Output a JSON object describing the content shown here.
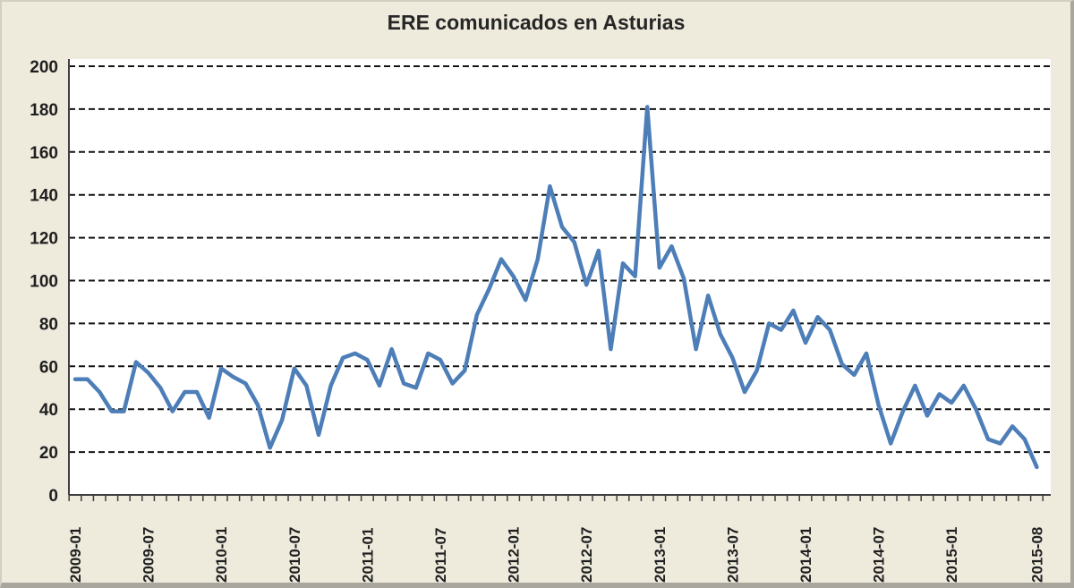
{
  "window": {
    "background_color": "#EEEADC",
    "border_color": "#A9A79D"
  },
  "title": "ERE comunicados en Asturias",
  "chart_data": {
    "type": "line",
    "title": "ERE comunicados en Asturias",
    "xlabel": "",
    "ylabel": "",
    "ylim": [
      0,
      200
    ],
    "y_ticks": [
      0,
      20,
      40,
      60,
      80,
      100,
      120,
      140,
      160,
      180,
      200
    ],
    "x_tick_labels": [
      "2009-01",
      "2009-07",
      "2010-01",
      "2010-07",
      "2011-01",
      "2011-07",
      "2012-01",
      "2012-07",
      "2013-01",
      "2013-07",
      "2014-01",
      "2014-07",
      "2015-01",
      "2015-08"
    ],
    "grid": "horizontal-dashed",
    "grid_color": "#141414",
    "legend": "none",
    "line_color": "#4D7EB8",
    "plot_background": "#FFFFFF",
    "axis_color": "#3f3f3f",
    "months": [
      "2009-01",
      "2009-02",
      "2009-03",
      "2009-04",
      "2009-05",
      "2009-06",
      "2009-07",
      "2009-08",
      "2009-09",
      "2009-10",
      "2009-11",
      "2009-12",
      "2010-01",
      "2010-02",
      "2010-03",
      "2010-04",
      "2010-05",
      "2010-06",
      "2010-07",
      "2010-08",
      "2010-09",
      "2010-10",
      "2010-11",
      "2010-12",
      "2011-01",
      "2011-02",
      "2011-03",
      "2011-04",
      "2011-05",
      "2011-06",
      "2011-07",
      "2011-08",
      "2011-09",
      "2011-10",
      "2011-11",
      "2011-12",
      "2012-01",
      "2012-02",
      "2012-03",
      "2012-04",
      "2012-05",
      "2012-06",
      "2012-07",
      "2012-08",
      "2012-09",
      "2012-10",
      "2012-11",
      "2012-12",
      "2013-01",
      "2013-02",
      "2013-03",
      "2013-04",
      "2013-05",
      "2013-06",
      "2013-07",
      "2013-08",
      "2013-09",
      "2013-10",
      "2013-11",
      "2013-12",
      "2014-01",
      "2014-02",
      "2014-03",
      "2014-04",
      "2014-05",
      "2014-06",
      "2014-07",
      "2014-08",
      "2014-09",
      "2014-10",
      "2014-11",
      "2014-12",
      "2015-01",
      "2015-02",
      "2015-03",
      "2015-04",
      "2015-05",
      "2015-06",
      "2015-07",
      "2015-08"
    ],
    "values": [
      54,
      54,
      48,
      39,
      39,
      62,
      57,
      50,
      39,
      48,
      48,
      36,
      59,
      55,
      52,
      42,
      22,
      35,
      59,
      51,
      28,
      51,
      64,
      66,
      63,
      51,
      68,
      52,
      50,
      66,
      63,
      52,
      58,
      84,
      96,
      110,
      102,
      91,
      110,
      144,
      125,
      118,
      98,
      114,
      68,
      108,
      102,
      181,
      106,
      116,
      101,
      68,
      93,
      75,
      64,
      48,
      58,
      80,
      77,
      86,
      71,
      83,
      77,
      61,
      56,
      66,
      42,
      24,
      39,
      51,
      37,
      47,
      43,
      51,
      40,
      26,
      24,
      32,
      26,
      13
    ]
  }
}
